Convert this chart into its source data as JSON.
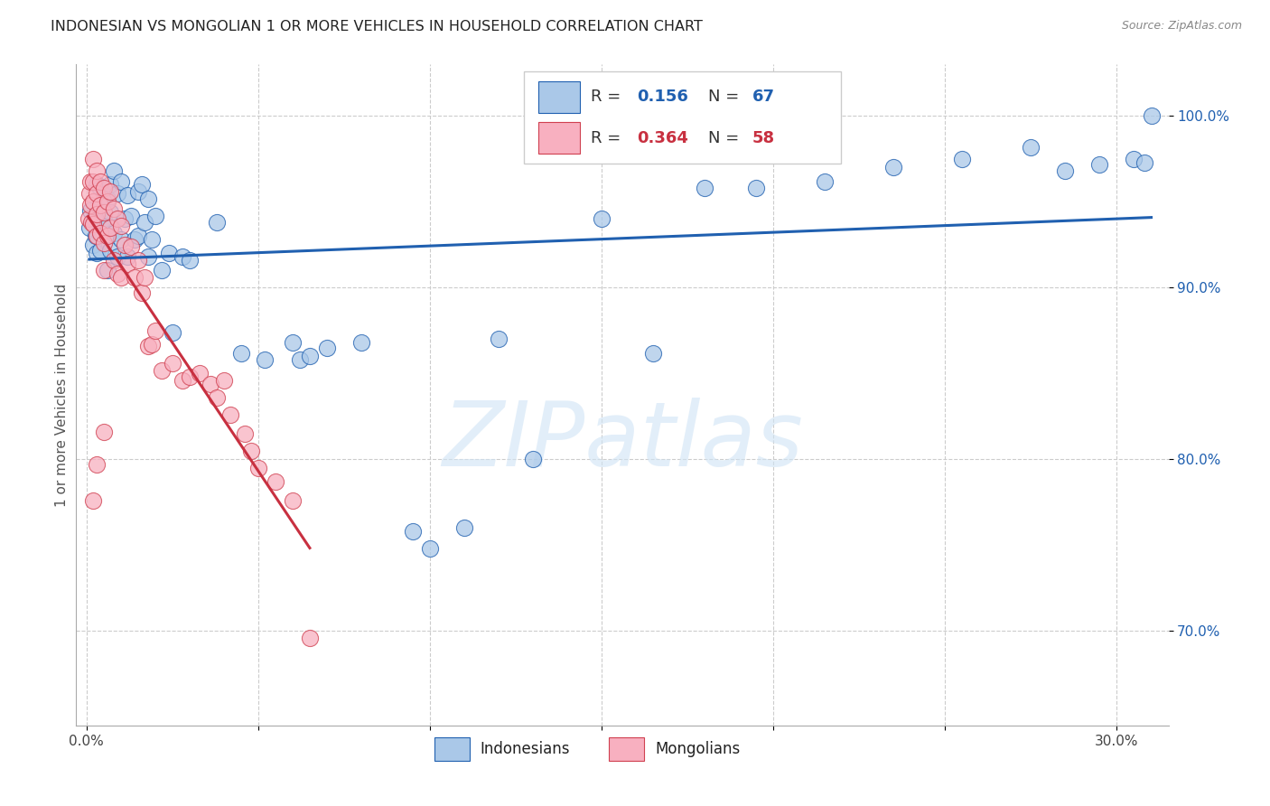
{
  "title": "INDONESIAN VS MONGOLIAN 1 OR MORE VEHICLES IN HOUSEHOLD CORRELATION CHART",
  "source": "Source: ZipAtlas.com",
  "ylabel": "1 or more Vehicles in Household",
  "xlim": [
    -0.003,
    0.315
  ],
  "ylim": [
    0.645,
    1.03
  ],
  "xticks": [
    0.0,
    0.05,
    0.1,
    0.15,
    0.2,
    0.25,
    0.3
  ],
  "xtick_labels": [
    "0.0%",
    "",
    "",
    "",
    "",
    "",
    "30.0%"
  ],
  "yticks": [
    0.7,
    0.8,
    0.9,
    1.0
  ],
  "ytick_labels": [
    "70.0%",
    "80.0%",
    "90.0%",
    "100.0%"
  ],
  "blue_face": "#aac8e8",
  "blue_edge": "#2060b0",
  "pink_face": "#f8b0c0",
  "pink_edge": "#d04050",
  "line_blue": "#2060b0",
  "line_pink": "#c83040",
  "legend_blue_r": "0.156",
  "legend_blue_n": "67",
  "legend_pink_r": "0.364",
  "legend_pink_n": "58",
  "watermark": "ZIPatlas",
  "ind_x": [
    0.0008,
    0.0012,
    0.0018,
    0.0022,
    0.0028,
    0.003,
    0.003,
    0.004,
    0.004,
    0.005,
    0.005,
    0.006,
    0.006,
    0.006,
    0.007,
    0.007,
    0.007,
    0.008,
    0.008,
    0.009,
    0.009,
    0.01,
    0.01,
    0.011,
    0.012,
    0.012,
    0.013,
    0.014,
    0.015,
    0.015,
    0.016,
    0.017,
    0.018,
    0.018,
    0.019,
    0.02,
    0.022,
    0.024,
    0.025,
    0.028,
    0.03,
    0.038,
    0.045,
    0.052,
    0.06,
    0.062,
    0.065,
    0.07,
    0.08,
    0.095,
    0.1,
    0.11,
    0.12,
    0.13,
    0.15,
    0.165,
    0.18,
    0.195,
    0.215,
    0.235,
    0.255,
    0.275,
    0.285,
    0.295,
    0.305,
    0.308,
    0.31
  ],
  "ind_y": [
    0.935,
    0.945,
    0.925,
    0.94,
    0.93,
    0.96,
    0.92,
    0.958,
    0.922,
    0.954,
    0.94,
    0.952,
    0.936,
    0.91,
    0.96,
    0.944,
    0.922,
    0.968,
    0.932,
    0.955,
    0.918,
    0.962,
    0.928,
    0.94,
    0.954,
    0.918,
    0.942,
    0.928,
    0.956,
    0.93,
    0.96,
    0.938,
    0.952,
    0.918,
    0.928,
    0.942,
    0.91,
    0.92,
    0.874,
    0.918,
    0.916,
    0.938,
    0.862,
    0.858,
    0.868,
    0.858,
    0.86,
    0.865,
    0.868,
    0.758,
    0.748,
    0.76,
    0.87,
    0.8,
    0.94,
    0.862,
    0.958,
    0.958,
    0.962,
    0.97,
    0.975,
    0.982,
    0.968,
    0.972,
    0.975,
    0.973,
    1.0
  ],
  "mon_x": [
    0.0005,
    0.0008,
    0.001,
    0.001,
    0.0015,
    0.002,
    0.002,
    0.002,
    0.002,
    0.003,
    0.003,
    0.003,
    0.003,
    0.004,
    0.004,
    0.004,
    0.005,
    0.005,
    0.005,
    0.005,
    0.006,
    0.006,
    0.007,
    0.007,
    0.008,
    0.008,
    0.009,
    0.009,
    0.01,
    0.01,
    0.011,
    0.012,
    0.013,
    0.014,
    0.015,
    0.016,
    0.017,
    0.018,
    0.019,
    0.02,
    0.022,
    0.025,
    0.028,
    0.03,
    0.033,
    0.036,
    0.038,
    0.04,
    0.042,
    0.046,
    0.048,
    0.05,
    0.055,
    0.06,
    0.065,
    0.002,
    0.003,
    0.005
  ],
  "mon_y": [
    0.94,
    0.955,
    0.962,
    0.948,
    0.938,
    0.975,
    0.962,
    0.95,
    0.937,
    0.968,
    0.955,
    0.943,
    0.93,
    0.962,
    0.948,
    0.932,
    0.958,
    0.944,
    0.926,
    0.91,
    0.95,
    0.93,
    0.956,
    0.935,
    0.946,
    0.916,
    0.94,
    0.908,
    0.936,
    0.906,
    0.925,
    0.914,
    0.924,
    0.906,
    0.916,
    0.897,
    0.906,
    0.866,
    0.867,
    0.875,
    0.852,
    0.856,
    0.846,
    0.848,
    0.85,
    0.844,
    0.836,
    0.846,
    0.826,
    0.815,
    0.805,
    0.795,
    0.787,
    0.776,
    0.696,
    0.776,
    0.797,
    0.816
  ]
}
